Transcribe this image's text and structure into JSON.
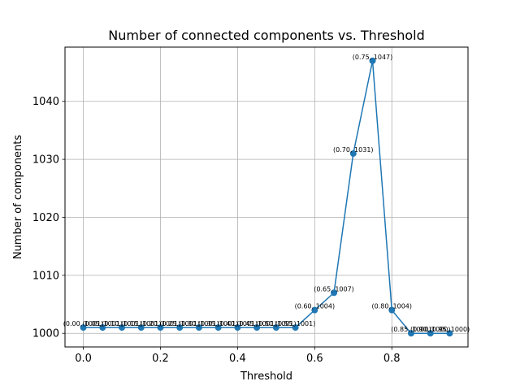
{
  "chart_data": {
    "type": "line",
    "title": "Number of connected components vs. Threshold",
    "xlabel": "Threshold",
    "ylabel": "Number of components",
    "xlim": [
      -0.0475,
      0.9975
    ],
    "ylim": [
      997.65,
      1049.35
    ],
    "xticks": [
      "0.0",
      "0.2",
      "0.4",
      "0.6",
      "0.8"
    ],
    "yticks": [
      "1000",
      "1010",
      "1020",
      "1030",
      "1040"
    ],
    "grid": true,
    "series": [
      {
        "color": "#1f77b4",
        "marker": "circle",
        "x": [
          0.0,
          0.05,
          0.1,
          0.15,
          0.2,
          0.25,
          0.3,
          0.35,
          0.4,
          0.45,
          0.5,
          0.55,
          0.6,
          0.65,
          0.7,
          0.75,
          0.8,
          0.85,
          0.9,
          0.95
        ],
        "y": [
          1001,
          1001,
          1001,
          1001,
          1001,
          1001,
          1001,
          1001,
          1001,
          1001,
          1001,
          1001,
          1004,
          1007,
          1031,
          1047,
          1004,
          1000,
          1000,
          1000
        ]
      }
    ],
    "data_labels": [
      "(0.00, 1001)",
      "(0.05, 1001)",
      "(0.10, 1001)",
      "(0.15, 1001)",
      "(0.20, 1001)",
      "(0.25, 1001)",
      "(0.30, 1001)",
      "(0.35, 1001)",
      "(0.40, 1001)",
      "(0.45, 1001)",
      "(0.50, 1001)",
      "(0.55, 1001)",
      "(0.60, 1004)",
      "(0.65, 1007)",
      "(0.70, 1031)",
      "(0.75, 1047)",
      "(0.80, 1004)",
      "(0.85, 1000)",
      "(0.90, 1000)",
      "(0.95, 1000)"
    ]
  }
}
